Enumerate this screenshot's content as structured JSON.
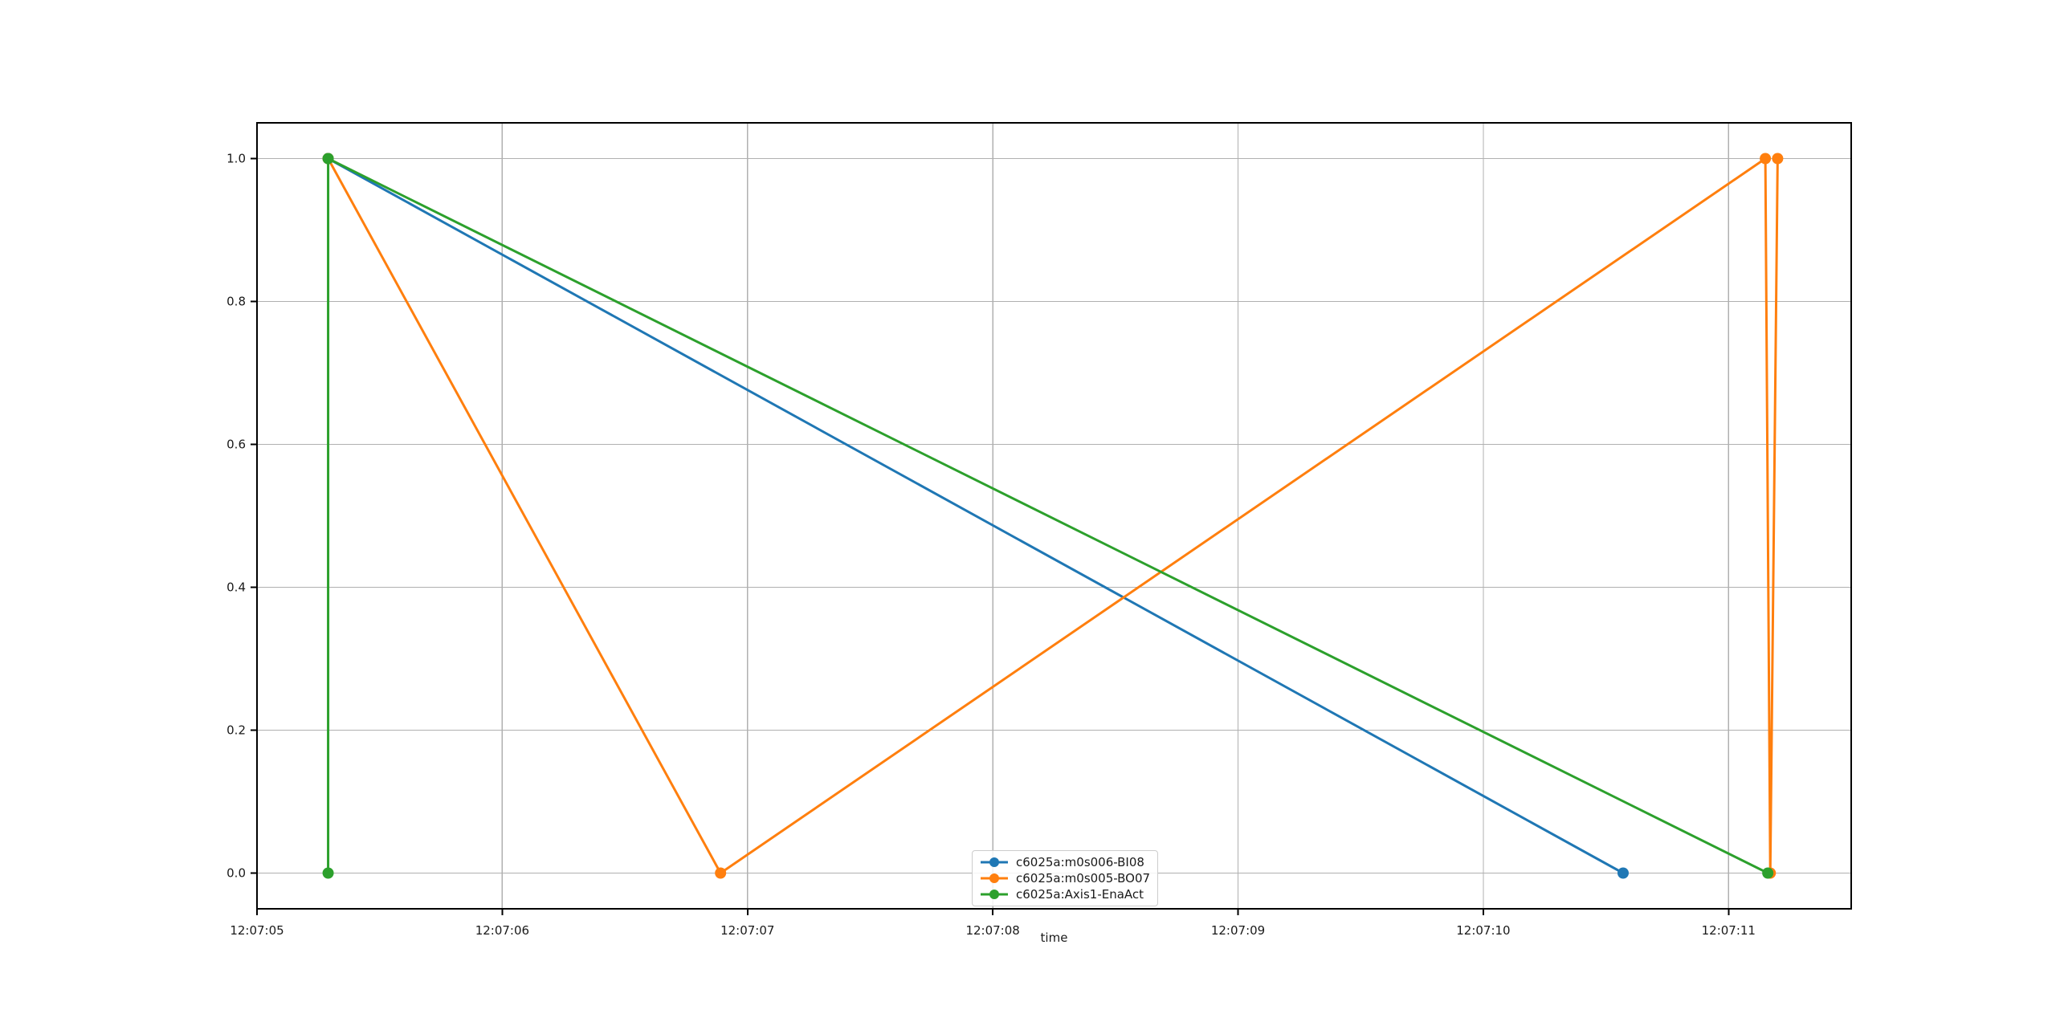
{
  "figure": {
    "background": "#ffffff"
  },
  "chart_data": {
    "type": "line",
    "title": "",
    "xlabel": "time",
    "ylabel": "",
    "x_unit": "seconds after 12:07:00",
    "xlim": [
      5.0,
      11.5
    ],
    "ylim": [
      -0.05,
      1.05
    ],
    "grid": true,
    "grid_color": "#b0b0b0",
    "spine_color": "#000000",
    "text_color": "#1a1a1a",
    "x_ticks": [
      {
        "value": 5,
        "label": "12:07:05"
      },
      {
        "value": 6,
        "label": "12:07:06"
      },
      {
        "value": 7,
        "label": "12:07:07"
      },
      {
        "value": 8,
        "label": "12:07:08"
      },
      {
        "value": 9,
        "label": "12:07:09"
      },
      {
        "value": 10,
        "label": "12:07:10"
      },
      {
        "value": 11,
        "label": "12:07:11"
      }
    ],
    "y_ticks": [
      {
        "value": 0.0,
        "label": "0.0"
      },
      {
        "value": 0.2,
        "label": "0.2"
      },
      {
        "value": 0.4,
        "label": "0.4"
      },
      {
        "value": 0.6,
        "label": "0.6"
      },
      {
        "value": 0.8,
        "label": "0.8"
      },
      {
        "value": 1.0,
        "label": "1.0"
      }
    ],
    "legend": {
      "position": "lower center"
    },
    "series": [
      {
        "name": "c6025a:m0s006-BI08",
        "color": "#1f77b4",
        "marker": "circle",
        "points": [
          [
            5.29,
            1
          ],
          [
            10.57,
            0
          ]
        ]
      },
      {
        "name": "c6025a:m0s005-BO07",
        "color": "#ff7f0e",
        "marker": "circle",
        "points": [
          [
            5.29,
            1
          ],
          [
            6.89,
            0
          ],
          [
            11.15,
            1
          ],
          [
            11.17,
            0
          ],
          [
            11.2,
            1
          ]
        ]
      },
      {
        "name": "c6025a:Axis1-EnaAct",
        "color": "#2ca02c",
        "marker": "circle",
        "points": [
          [
            5.29,
            0
          ],
          [
            5.29,
            1
          ],
          [
            11.16,
            0
          ]
        ]
      }
    ]
  }
}
